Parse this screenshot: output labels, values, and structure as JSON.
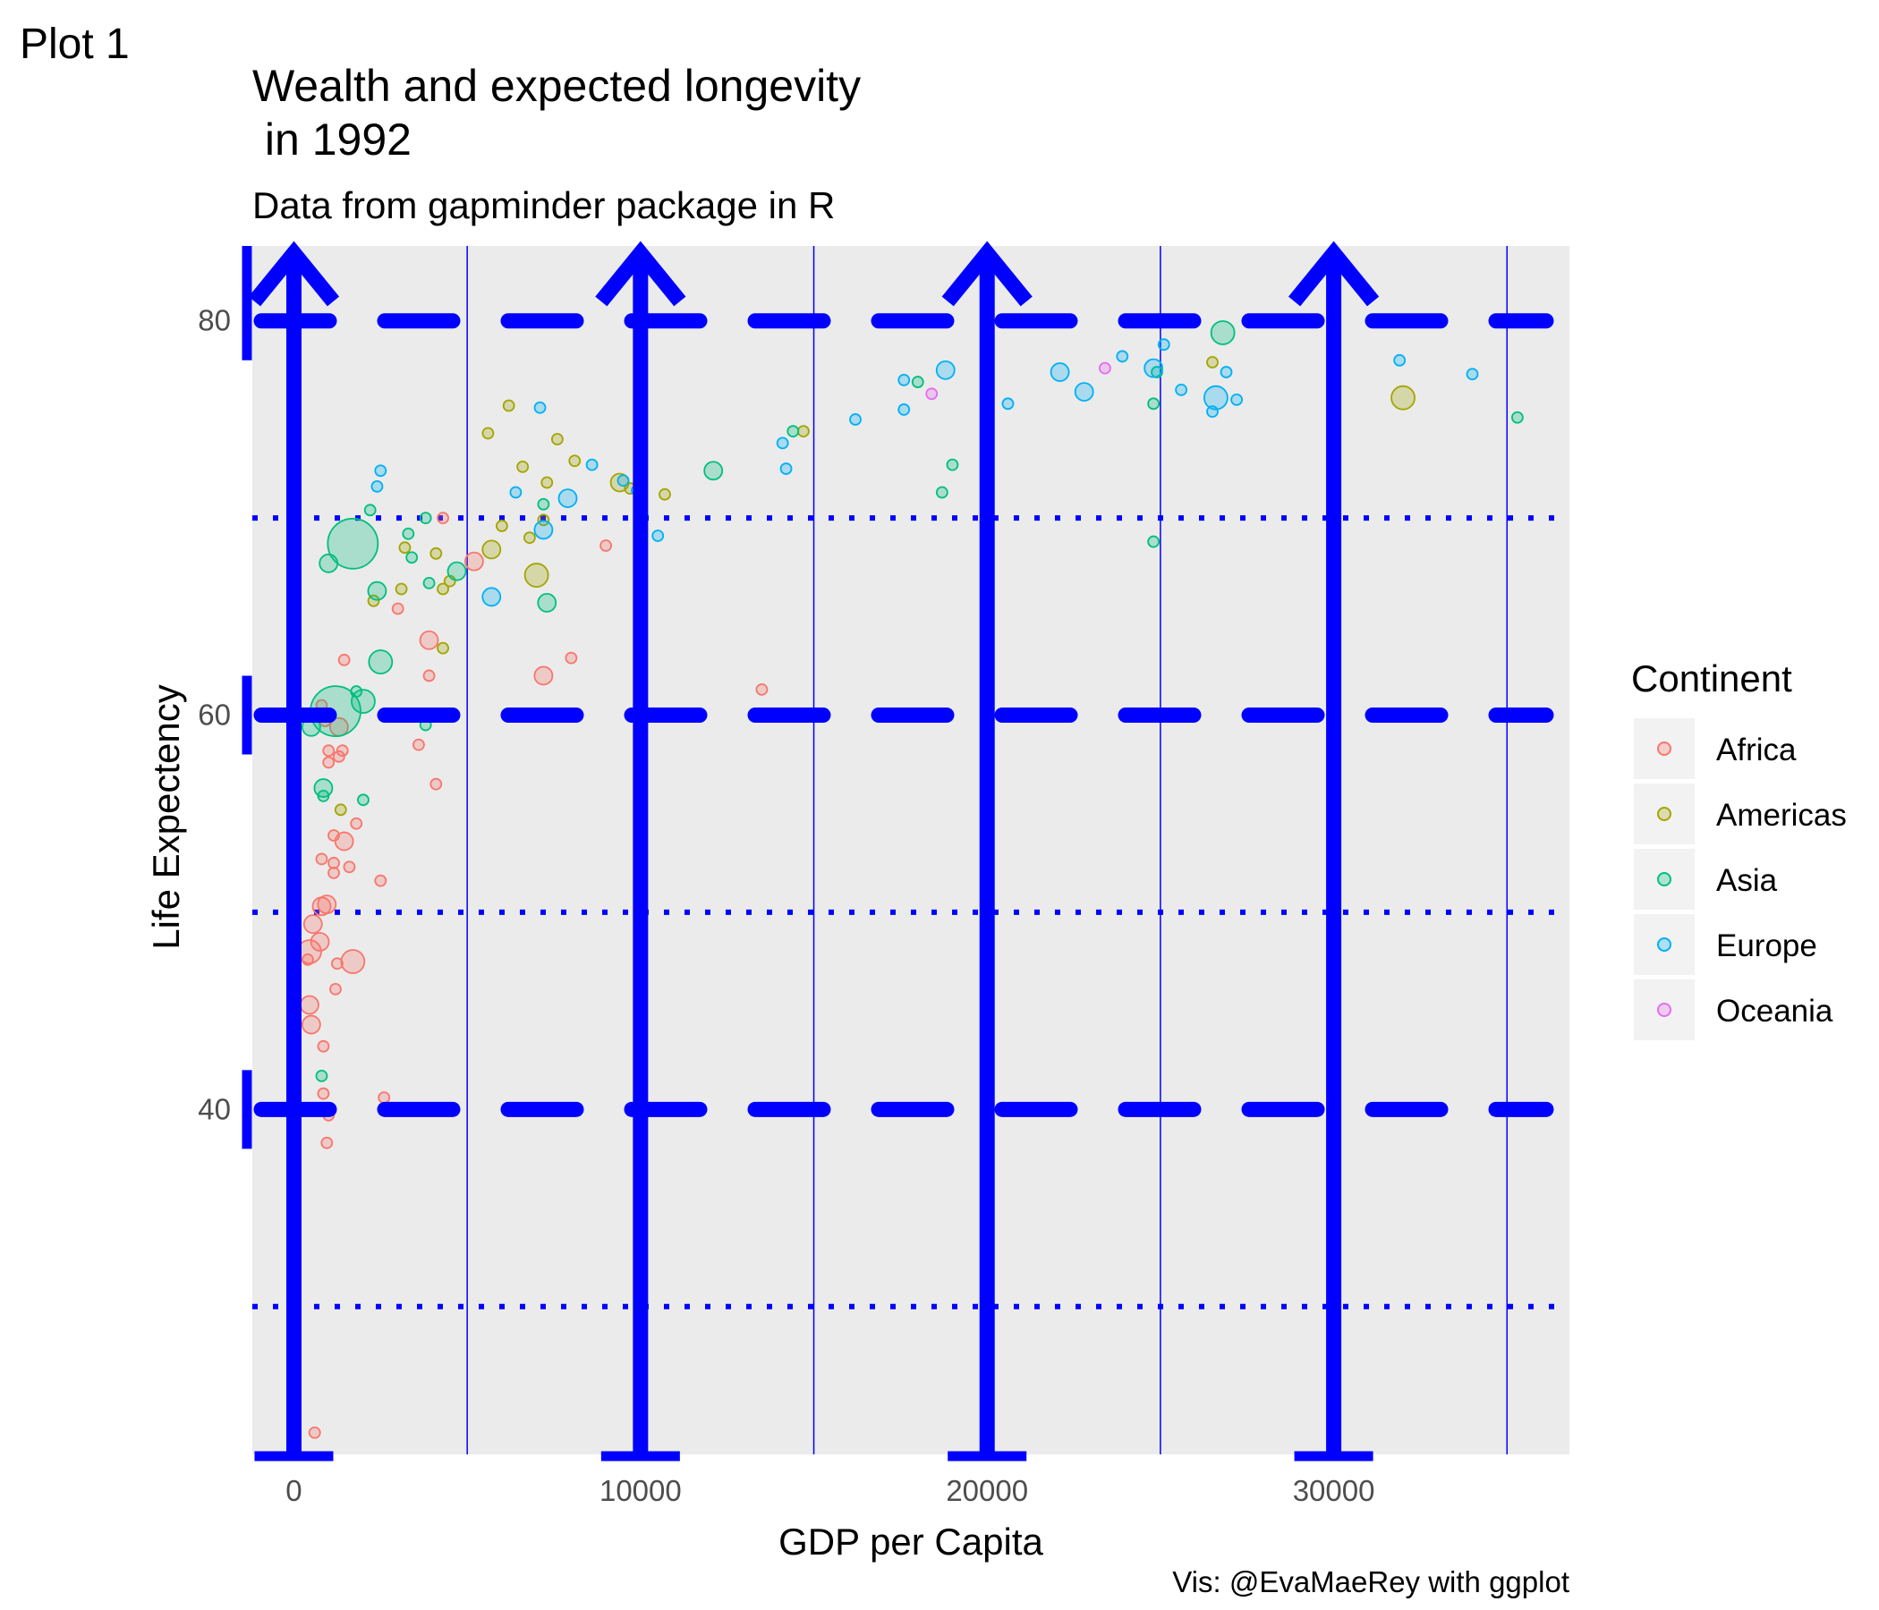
{
  "tag": "Plot 1",
  "colors": {
    "panel": "#ebebeb",
    "annotation": "#0000ff",
    "Africa": "#F8766D",
    "Americas": "#A3A500",
    "Asia": "#00BF7D",
    "Europe": "#00B0F6",
    "Oceania": "#E76BF3"
  },
  "chart_data": {
    "type": "scatter",
    "title": "Wealth and expected longevity\n in 1992",
    "subtitle": "Data from gapminder package in R",
    "caption": "Vis: @EvaMaeRey with ggplot",
    "xlabel": "GDP per Capita",
    "ylabel": "Life Expectency",
    "xlim": [
      -1200,
      36800
    ],
    "ylim": [
      22.5,
      83.8
    ],
    "x_ticks": [
      0,
      10000,
      20000,
      30000
    ],
    "x_tick_labels": [
      "0",
      "10000",
      "20000",
      "30000"
    ],
    "y_ticks": [
      40,
      60,
      80
    ],
    "y_tick_labels": [
      "40",
      "60",
      "80"
    ],
    "legend": {
      "title": "Continent",
      "position": "right",
      "entries": [
        "Africa",
        "Americas",
        "Asia",
        "Europe",
        "Oceania"
      ]
    },
    "annotations": {
      "vertical_arrows_at_x": [
        0,
        10000,
        20000,
        30000
      ],
      "dashed_hlines_at_y": [
        40,
        60,
        80
      ],
      "dotted_hlines_at_y": [
        30,
        50,
        70
      ],
      "thin_vlines_at_x": [
        5000,
        15000,
        25000,
        35000
      ]
    },
    "series": [
      {
        "name": "Africa",
        "points": [
          [
            600,
            23.6,
            1
          ],
          [
            950,
            38.3,
            1
          ],
          [
            1000,
            39.7,
            1
          ],
          [
            2600,
            40.6,
            1
          ],
          [
            850,
            40.8,
            1
          ],
          [
            850,
            43.2,
            1
          ],
          [
            500,
            44.3,
            2
          ],
          [
            450,
            45.3,
            2
          ],
          [
            1200,
            46.1,
            1
          ],
          [
            400,
            47.6,
            1
          ],
          [
            1700,
            47.5,
            3
          ],
          [
            1250,
            47.4,
            1
          ],
          [
            450,
            48.0,
            3
          ],
          [
            750,
            48.5,
            2
          ],
          [
            550,
            49.4,
            2
          ],
          [
            800,
            50.3,
            2
          ],
          [
            950,
            50.4,
            2
          ],
          [
            2500,
            51.6,
            1
          ],
          [
            1150,
            52.0,
            1
          ],
          [
            1600,
            52.3,
            1
          ],
          [
            1150,
            52.5,
            1
          ],
          [
            800,
            52.7,
            1
          ],
          [
            1450,
            53.6,
            2
          ],
          [
            1150,
            53.9,
            1
          ],
          [
            1800,
            54.5,
            1
          ],
          [
            4100,
            56.5,
            1
          ],
          [
            1000,
            57.6,
            1
          ],
          [
            1400,
            58.2,
            1
          ],
          [
            1000,
            58.2,
            1
          ],
          [
            1300,
            57.9,
            1
          ],
          [
            3600,
            58.5,
            1
          ],
          [
            1300,
            59.4,
            2
          ],
          [
            900,
            59.7,
            1
          ],
          [
            800,
            60.5,
            1
          ],
          [
            3900,
            62.0,
            1
          ],
          [
            7200,
            62.0,
            2
          ],
          [
            1450,
            62.8,
            1
          ],
          [
            8000,
            62.9,
            1
          ],
          [
            13500,
            61.3,
            1
          ],
          [
            3900,
            63.8,
            2
          ],
          [
            3000,
            65.4,
            1
          ],
          [
            5200,
            67.8,
            2
          ],
          [
            4300,
            70.0,
            1
          ],
          [
            9000,
            68.6,
            1
          ]
        ]
      },
      {
        "name": "Americas",
        "points": [
          [
            1350,
            55.2,
            1
          ],
          [
            3000,
            60.0,
            1
          ],
          [
            4300,
            63.4,
            1
          ],
          [
            2300,
            65.8,
            1
          ],
          [
            3100,
            66.4,
            1
          ],
          [
            4300,
            66.4,
            1
          ],
          [
            7000,
            67.1,
            3
          ],
          [
            4500,
            66.8,
            1
          ],
          [
            6000,
            69.6,
            1
          ],
          [
            6800,
            69.0,
            1
          ],
          [
            3200,
            68.5,
            1
          ],
          [
            4100,
            68.2,
            1
          ],
          [
            5700,
            68.4,
            2
          ],
          [
            7200,
            69.9,
            1
          ],
          [
            6600,
            72.6,
            1
          ],
          [
            7300,
            71.8,
            1
          ],
          [
            9400,
            71.8,
            2
          ],
          [
            9700,
            71.5,
            1
          ],
          [
            10700,
            71.2,
            1
          ],
          [
            8100,
            72.9,
            1
          ],
          [
            5600,
            74.3,
            1
          ],
          [
            7600,
            74.0,
            1
          ],
          [
            6200,
            75.7,
            1
          ],
          [
            14700,
            74.4,
            1
          ],
          [
            26500,
            77.9,
            1
          ],
          [
            32000,
            76.1,
            3
          ]
        ]
      },
      {
        "name": "Asia",
        "points": [
          [
            800,
            41.7,
            1
          ],
          [
            2000,
            55.7,
            1
          ],
          [
            850,
            55.9,
            1
          ],
          [
            850,
            56.3,
            2
          ],
          [
            500,
            59.4,
            2
          ],
          [
            1200,
            60.2,
            6
          ],
          [
            2000,
            60.7,
            3
          ],
          [
            1800,
            61.2,
            1
          ],
          [
            3800,
            59.5,
            1
          ],
          [
            2500,
            62.7,
            3
          ],
          [
            2400,
            66.3,
            2
          ],
          [
            7300,
            65.7,
            2
          ],
          [
            1000,
            67.7,
            2
          ],
          [
            4700,
            67.3,
            2
          ],
          [
            1700,
            68.7,
            6
          ],
          [
            3400,
            68.0,
            1
          ],
          [
            3800,
            70.0,
            1
          ],
          [
            3300,
            69.2,
            1
          ],
          [
            7200,
            70.7,
            1
          ],
          [
            2200,
            70.4,
            1
          ],
          [
            12100,
            72.4,
            2
          ],
          [
            18700,
            71.3,
            1
          ],
          [
            19000,
            72.7,
            1
          ],
          [
            18000,
            76.9,
            1
          ],
          [
            24800,
            68.8,
            1
          ],
          [
            14400,
            74.4,
            1
          ],
          [
            24900,
            77.4,
            1
          ],
          [
            26800,
            79.4,
            3
          ],
          [
            24800,
            75.8,
            1
          ],
          [
            35300,
            75.1,
            1
          ],
          [
            3900,
            66.7,
            1
          ]
        ]
      },
      {
        "name": "Europe",
        "points": [
          [
            2400,
            71.6,
            1
          ],
          [
            2500,
            72.4,
            1
          ],
          [
            5700,
            66.0,
            2
          ],
          [
            6400,
            71.3,
            1
          ],
          [
            7100,
            75.6,
            1
          ],
          [
            7200,
            69.4,
            2
          ],
          [
            7900,
            71.0,
            2
          ],
          [
            8600,
            72.7,
            1
          ],
          [
            9500,
            71.9,
            1
          ],
          [
            9900,
            71.4,
            1
          ],
          [
            10500,
            69.1,
            1
          ],
          [
            14200,
            72.5,
            1
          ],
          [
            14100,
            73.8,
            1
          ],
          [
            16200,
            75.0,
            1
          ],
          [
            17600,
            75.5,
            1
          ],
          [
            17600,
            77.0,
            1
          ],
          [
            18800,
            77.5,
            2
          ],
          [
            20600,
            75.8,
            1
          ],
          [
            22100,
            77.4,
            2
          ],
          [
            22800,
            76.4,
            2
          ],
          [
            23900,
            78.2,
            1
          ],
          [
            24800,
            77.6,
            2
          ],
          [
            25100,
            78.8,
            1
          ],
          [
            25600,
            76.5,
            1
          ],
          [
            26500,
            75.4,
            1
          ],
          [
            26600,
            76.1,
            3
          ],
          [
            26900,
            77.4,
            1
          ],
          [
            27200,
            76.0,
            1
          ],
          [
            31900,
            78.0,
            1
          ],
          [
            34000,
            77.3,
            1
          ]
        ]
      },
      {
        "name": "Oceania",
        "points": [
          [
            18400,
            76.3,
            1
          ],
          [
            23400,
            77.6,
            1
          ]
        ]
      }
    ]
  }
}
